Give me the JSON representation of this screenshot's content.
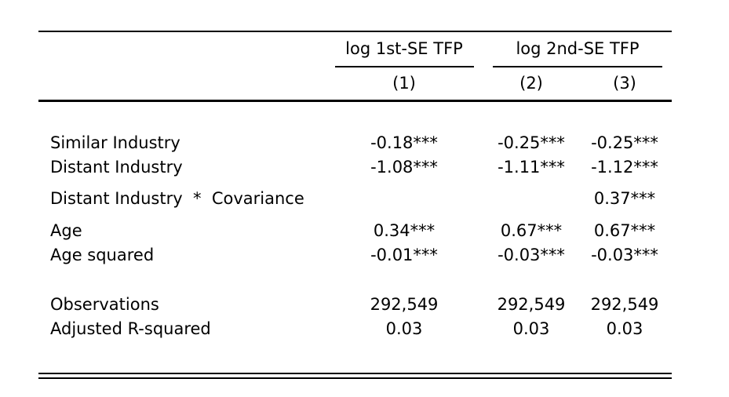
{
  "header": {
    "groups": [
      "log 1st-SE TFP",
      "log 2nd-SE TFP"
    ],
    "columns": [
      "(1)",
      "(2)",
      "(3)"
    ]
  },
  "rows": [
    {
      "label": "Similar Industry",
      "values": [
        "-0.18***",
        "-0.25***",
        "-0.25***"
      ]
    },
    {
      "label": "Distant Industry",
      "values": [
        "-1.08***",
        "-1.11***",
        "-1.12***"
      ]
    },
    {
      "label": "Distant Industry  *  Covariance",
      "values": [
        "",
        "",
        "0.37***"
      ]
    },
    {
      "label": "Age",
      "values": [
        "0.34***",
        "0.67***",
        "0.67***"
      ]
    },
    {
      "label": "Age squared",
      "values": [
        "-0.01***",
        "-0.03***",
        "-0.03***"
      ]
    },
    {
      "label": "Observations",
      "values": [
        "292,549",
        "292,549",
        "292,549"
      ]
    },
    {
      "label": "Adjusted R-squared",
      "values": [
        "0.03",
        "0.03",
        "0.03"
      ]
    }
  ]
}
